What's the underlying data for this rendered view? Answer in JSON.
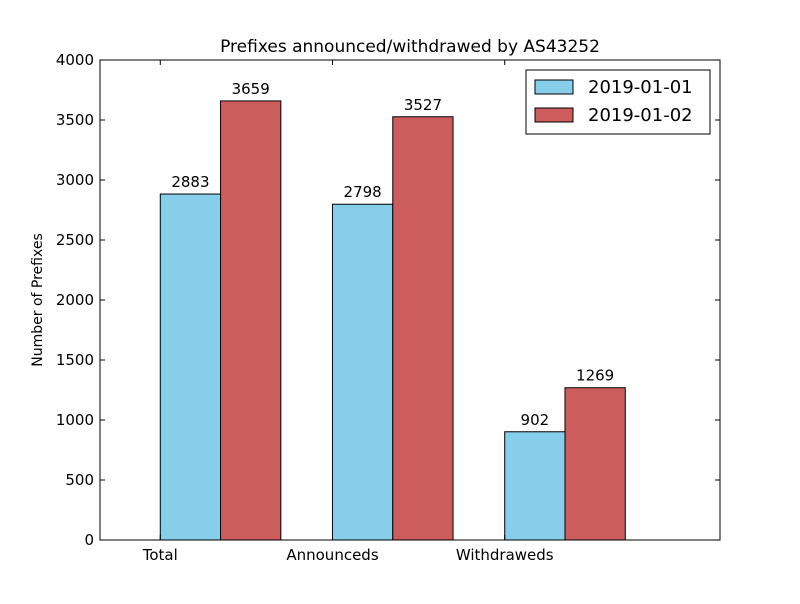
{
  "chart_data": {
    "type": "bar",
    "title": "Prefixes announced/withdrawed by AS43252",
    "xlabel": "",
    "ylabel": "Number of Prefixes",
    "categories": [
      "Total",
      "Announceds",
      "Withdraweds"
    ],
    "series": [
      {
        "name": "2019-01-01",
        "color": "#87CEEB",
        "values": [
          2883,
          2798,
          902
        ]
      },
      {
        "name": "2019-01-02",
        "color": "#CD5C5C",
        "values": [
          3659,
          3527,
          1269
        ]
      }
    ],
    "ylim": [
      0,
      4000
    ],
    "yticks": [
      0,
      500,
      1000,
      1500,
      2000,
      2500,
      3000,
      3500,
      4000
    ],
    "grid": false,
    "legend": "top-right",
    "data_labels": true
  }
}
